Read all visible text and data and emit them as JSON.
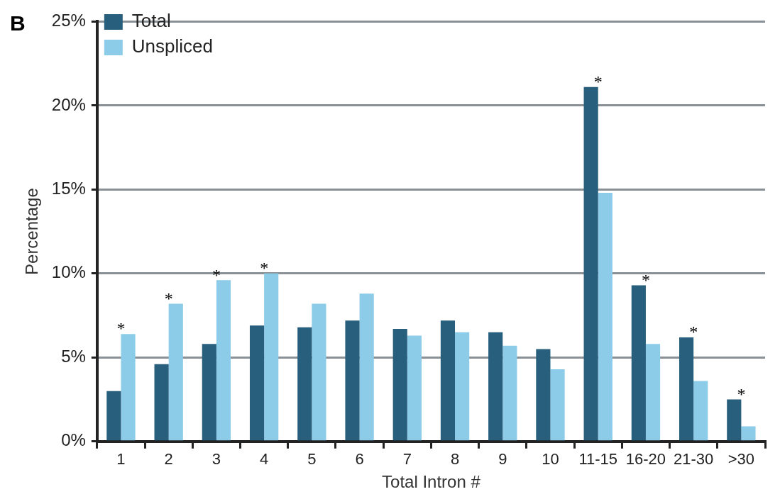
{
  "chart_data": {
    "type": "bar",
    "xlabel": "Total Intron #",
    "ylabel": "Percentage",
    "categories": [
      "1",
      "2",
      "3",
      "4",
      "5",
      "6",
      "7",
      "8",
      "9",
      "10",
      "11-15",
      "16-20",
      "21-30",
      ">30"
    ],
    "series": [
      {
        "name": "Total",
        "color": "#285f7c",
        "values": [
          3.0,
          4.6,
          5.8,
          6.9,
          6.8,
          7.2,
          6.7,
          7.2,
          6.5,
          5.5,
          21.1,
          9.3,
          6.2,
          2.5
        ]
      },
      {
        "name": "Unspliced",
        "color": "#8ccce9",
        "values": [
          6.4,
          8.2,
          9.6,
          10.0,
          8.2,
          8.8,
          6.3,
          6.5,
          5.7,
          4.3,
          14.8,
          5.8,
          3.6,
          0.9
        ]
      }
    ],
    "ylim": [
      0,
      25
    ],
    "yticks": [
      {
        "value": 0,
        "label": "0%"
      },
      {
        "value": 5,
        "label": "5%"
      },
      {
        "value": 10,
        "label": "10%"
      },
      {
        "value": 15,
        "label": "15%"
      },
      {
        "value": 20,
        "label": "20%"
      },
      {
        "value": 25,
        "label": "25%"
      }
    ],
    "grid": "y",
    "legend": "top left",
    "annotations": [
      "B",
      {
        "text": "*",
        "x": "1",
        "y": 6.4
      },
      {
        "text": "*",
        "x": "2",
        "y": 8.2
      },
      {
        "text": "*",
        "x": "3",
        "y": 9.6
      },
      {
        "text": "*",
        "x": "4",
        "y": 10.0
      },
      {
        "text": "*",
        "x": "11-15",
        "y": 21.1
      },
      {
        "text": "*",
        "x": "16-20",
        "y": 9.3
      },
      {
        "text": "*",
        "x": "21-30",
        "y": 6.2
      },
      {
        "text": "*",
        "x": ">30",
        "y": 2.5
      }
    ]
  }
}
